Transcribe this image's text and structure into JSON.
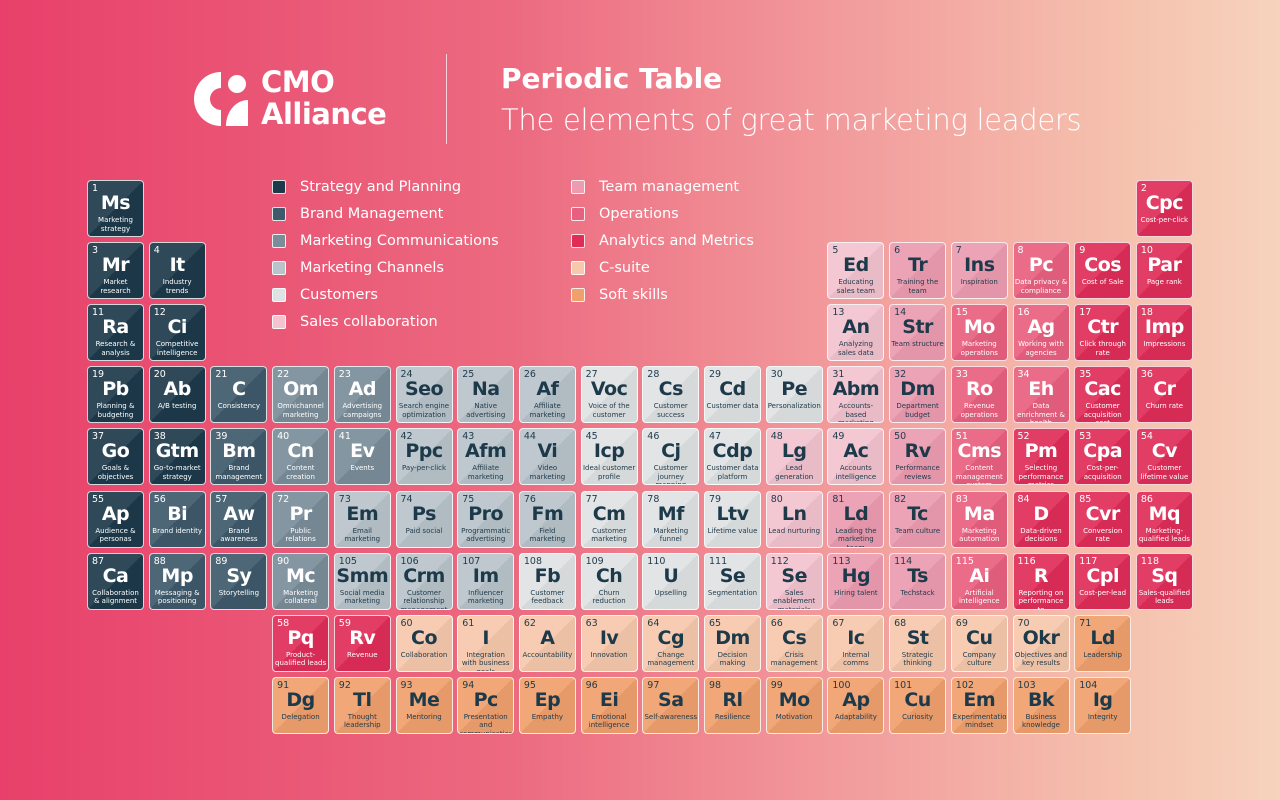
{
  "header": {
    "brand_line1": "CMO",
    "brand_line2": "Alliance",
    "title": "Periodic Table",
    "subtitle": "The elements of great marketing leaders"
  },
  "categories": {
    "S": {
      "label": "Strategy and Planning",
      "color": "#1d3a4b",
      "text": "#ffffff"
    },
    "B": {
      "label": "Brand Management",
      "color": "#3e5a6b",
      "text": "#ffffff"
    },
    "MC": {
      "label": "Marketing Communications",
      "color": "#7a8d99",
      "text": "#ffffff"
    },
    "CH": {
      "label": "Marketing Channels",
      "color": "#b8c3ca",
      "text": "#1d3a4b"
    },
    "CU": {
      "label": "Customers",
      "color": "#dfe2e3",
      "text": "#1d3a4b"
    },
    "SC": {
      "label": "Sales collaboration",
      "color": "#f3c3cf",
      "text": "#1d3a4b"
    },
    "TM": {
      "label": "Team management",
      "color": "#ec9bb0",
      "text": "#1d3a4b"
    },
    "OP": {
      "label": "Operations",
      "color": "#e8607f",
      "text": "#ffffff"
    },
    "AN": {
      "label": "Analytics and Metrics",
      "color": "#df2d58",
      "text": "#ffffff"
    },
    "CS": {
      "label": "C-suite",
      "color": "#f6c8ac",
      "text": "#1d3a4b"
    },
    "SS": {
      "label": "Soft skills",
      "color": "#f0a06d",
      "text": "#1d3a4b"
    }
  },
  "legend_order": [
    "S",
    "B",
    "MC",
    "CH",
    "CU",
    "SC",
    "TM",
    "OP",
    "AN",
    "CS",
    "SS"
  ],
  "rows": [
    [
      [
        "1",
        "Ms",
        "Marketing strategy",
        "S"
      ],
      [
        "2",
        "Cpc",
        "Cost-per-click",
        "AN"
      ]
    ],
    [
      [
        "3",
        "Mr",
        "Market research",
        "S"
      ],
      [
        "4",
        "It",
        "Industry trends",
        "S"
      ],
      [
        "5",
        "Ed",
        "Educating sales team",
        "SC"
      ],
      [
        "6",
        "Tr",
        "Training the team",
        "TM"
      ],
      [
        "7",
        "Ins",
        "Inspiration",
        "TM"
      ],
      [
        "8",
        "Pc",
        "Data privacy & compliance",
        "OP"
      ],
      [
        "9",
        "Cos",
        "Cost of Sale",
        "AN"
      ],
      [
        "10",
        "Par",
        "Page rank",
        "AN"
      ]
    ],
    [
      [
        "11",
        "Ra",
        "Research & analysis",
        "S"
      ],
      [
        "12",
        "Ci",
        "Competitive intelligence",
        "S"
      ],
      [
        "13",
        "An",
        "Analyzing sales data",
        "SC"
      ],
      [
        "14",
        "Str",
        "Team structure",
        "TM"
      ],
      [
        "15",
        "Mo",
        "Marketing operations",
        "OP"
      ],
      [
        "16",
        "Ag",
        "Working with agencies",
        "OP"
      ],
      [
        "17",
        "Ctr",
        "Click through rate",
        "AN"
      ],
      [
        "18",
        "Imp",
        "Impressions",
        "AN"
      ]
    ],
    [
      [
        "19",
        "Pb",
        "Planning & budgeting",
        "S"
      ],
      [
        "20",
        "Ab",
        "A/B testing",
        "S"
      ],
      [
        "21",
        "C",
        "Consistency",
        "B"
      ],
      [
        "22",
        "Om",
        "Omnichannel marketing",
        "MC"
      ],
      [
        "23",
        "Ad",
        "Advertising campaigns",
        "MC"
      ],
      [
        "24",
        "Seo",
        "Search engine optimization",
        "CH"
      ],
      [
        "25",
        "Na",
        "Native advertising",
        "CH"
      ],
      [
        "26",
        "Af",
        "Affiliate marketing",
        "CH"
      ],
      [
        "27",
        "Voc",
        "Voice of the customer",
        "CU"
      ],
      [
        "28",
        "Cs",
        "Customer success",
        "CU"
      ],
      [
        "29",
        "Cd",
        "Customer data",
        "CU"
      ],
      [
        "30",
        "Pe",
        "Personalization",
        "CU"
      ],
      [
        "31",
        "Abm",
        "Accounts-based marketing",
        "SC"
      ],
      [
        "32",
        "Dm",
        "Department budget",
        "TM"
      ],
      [
        "33",
        "Ro",
        "Revenue operations",
        "OP"
      ],
      [
        "34",
        "Eh",
        "Data enrichment & health",
        "OP"
      ],
      [
        "35",
        "Cac",
        "Customer acquisition cost",
        "AN"
      ],
      [
        "36",
        "Cr",
        "Churn rate",
        "AN"
      ]
    ],
    [
      [
        "37",
        "Go",
        "Goals & objectives",
        "S"
      ],
      [
        "38",
        "Gtm",
        "Go-to-market strategy",
        "S"
      ],
      [
        "39",
        "Bm",
        "Brand management",
        "B"
      ],
      [
        "40",
        "Cn",
        "Content creation",
        "MC"
      ],
      [
        "41",
        "Ev",
        "Events",
        "MC"
      ],
      [
        "42",
        "Ppc",
        "Pay-per-click",
        "CH"
      ],
      [
        "43",
        "Afm",
        "Affiliate marketing",
        "CH"
      ],
      [
        "44",
        "Vi",
        "Video marketing",
        "CH"
      ],
      [
        "45",
        "Icp",
        "Ideal customer profile",
        "CU"
      ],
      [
        "46",
        "Cj",
        "Customer journey mapping",
        "CU"
      ],
      [
        "47",
        "Cdp",
        "Customer data platform",
        "CU"
      ],
      [
        "48",
        "Lg",
        "Lead generation",
        "SC"
      ],
      [
        "49",
        "Ac",
        "Accounts intelligence",
        "SC"
      ],
      [
        "50",
        "Rv",
        "Performance reviews",
        "TM"
      ],
      [
        "51",
        "Cms",
        "Content management system",
        "OP"
      ],
      [
        "52",
        "Pm",
        "Selecting performance metrics",
        "AN"
      ],
      [
        "53",
        "Cpa",
        "Cost-per-acquisition",
        "AN"
      ],
      [
        "54",
        "Cv",
        "Customer lifetime value",
        "AN"
      ]
    ],
    [
      [
        "55",
        "Ap",
        "Audience & personas",
        "S"
      ],
      [
        "56",
        "Bi",
        "Brand identity",
        "B"
      ],
      [
        "57",
        "Aw",
        "Brand awareness",
        "B"
      ],
      [
        "72",
        "Pr",
        "Public relations",
        "MC"
      ],
      [
        "73",
        "Em",
        "Email marketing",
        "CH"
      ],
      [
        "74",
        "Ps",
        "Paid social",
        "CH"
      ],
      [
        "75",
        "Pro",
        "Programmatic advertising",
        "CH"
      ],
      [
        "76",
        "Fm",
        "Field marketing",
        "CH"
      ],
      [
        "77",
        "Cm",
        "Customer marketing",
        "CU"
      ],
      [
        "78",
        "Mf",
        "Marketing funnel",
        "CU"
      ],
      [
        "79",
        "Ltv",
        "Lifetime value",
        "CU"
      ],
      [
        "80",
        "Ln",
        "Lead nurturing",
        "SC"
      ],
      [
        "81",
        "Ld",
        "Leading the marketing team",
        "TM"
      ],
      [
        "82",
        "Tc",
        "Team culture",
        "TM"
      ],
      [
        "83",
        "Ma",
        "Marketing automation",
        "OP"
      ],
      [
        "84",
        "D",
        "Data-driven decisions",
        "AN"
      ],
      [
        "85",
        "Cvr",
        "Conversion rate",
        "AN"
      ],
      [
        "86",
        "Mq",
        "Marketing-qualified leads",
        "AN"
      ]
    ],
    [
      [
        "87",
        "Ca",
        "Collaboration & alignment",
        "S"
      ],
      [
        "88",
        "Mp",
        "Messaging & positioning",
        "B"
      ],
      [
        "89",
        "Sy",
        "Storytelling",
        "B"
      ],
      [
        "90",
        "Mc",
        "Marketing collateral",
        "MC"
      ],
      [
        "105",
        "Smm",
        "Social media marketing",
        "CH"
      ],
      [
        "106",
        "Crm",
        "Customer relationship management",
        "CH"
      ],
      [
        "107",
        "Im",
        "Influencer marketing",
        "CH"
      ],
      [
        "108",
        "Fb",
        "Customer feedback",
        "CU"
      ],
      [
        "109",
        "Ch",
        "Churn reduction",
        "CU"
      ],
      [
        "110",
        "U",
        "Upselling",
        "CU"
      ],
      [
        "111",
        "Se",
        "Segmentation",
        "CU"
      ],
      [
        "112",
        "Se",
        "Sales enablement materials",
        "SC"
      ],
      [
        "113",
        "Hg",
        "Hiring talent",
        "TM"
      ],
      [
        "114",
        "Ts",
        "Techstack",
        "TM"
      ],
      [
        "115",
        "Ai",
        "Artificial intelligence",
        "OP"
      ],
      [
        "116",
        "R",
        "Reporting on performance to stakeholders",
        "AN"
      ],
      [
        "117",
        "Cpl",
        "Cost-per-lead",
        "AN"
      ],
      [
        "118",
        "Sq",
        "Sales-qualified leads",
        "AN"
      ]
    ],
    [
      [
        "58",
        "Pq",
        "Product-qualified leads",
        "AN"
      ],
      [
        "59",
        "Rv",
        "Revenue",
        "AN"
      ],
      [
        "60",
        "Co",
        "Collaboration",
        "CS"
      ],
      [
        "61",
        "I",
        "Integration with business goals",
        "CS"
      ],
      [
        "62",
        "A",
        "Accountability",
        "CS"
      ],
      [
        "63",
        "Iv",
        "Innovation",
        "CS"
      ],
      [
        "64",
        "Cg",
        "Change management",
        "CS"
      ],
      [
        "65",
        "Dm",
        "Decision making",
        "CS"
      ],
      [
        "66",
        "Cs",
        "Crisis management",
        "CS"
      ],
      [
        "67",
        "Ic",
        "Internal comms",
        "CS"
      ],
      [
        "68",
        "St",
        "Strategic thinking",
        "CS"
      ],
      [
        "69",
        "Cu",
        "Company culture",
        "CS"
      ],
      [
        "70",
        "Okr",
        "Objectives and key results",
        "CS"
      ],
      [
        "71",
        "Ld",
        "Leadership",
        "SS"
      ]
    ],
    [
      [
        "91",
        "Dg",
        "Delegation",
        "SS"
      ],
      [
        "92",
        "Tl",
        "Thought leadership",
        "SS"
      ],
      [
        "93",
        "Me",
        "Mentoring",
        "SS"
      ],
      [
        "94",
        "Pc",
        "Presentation and communication",
        "SS"
      ],
      [
        "95",
        "Ep",
        "Empathy",
        "SS"
      ],
      [
        "96",
        "Ei",
        "Emotional intelligence",
        "SS"
      ],
      [
        "97",
        "Sa",
        "Self-awareness",
        "SS"
      ],
      [
        "98",
        "Rl",
        "Resilience",
        "SS"
      ],
      [
        "99",
        "Mo",
        "Motivation",
        "SS"
      ],
      [
        "100",
        "Ap",
        "Adaptability",
        "SS"
      ],
      [
        "101",
        "Cu",
        "Curiosity",
        "SS"
      ],
      [
        "102",
        "Em",
        "Experimentation mindset",
        "SS"
      ],
      [
        "103",
        "Bk",
        "Business knowledge",
        "SS"
      ],
      [
        "104",
        "Ig",
        "Integrity",
        "SS"
      ]
    ]
  ]
}
